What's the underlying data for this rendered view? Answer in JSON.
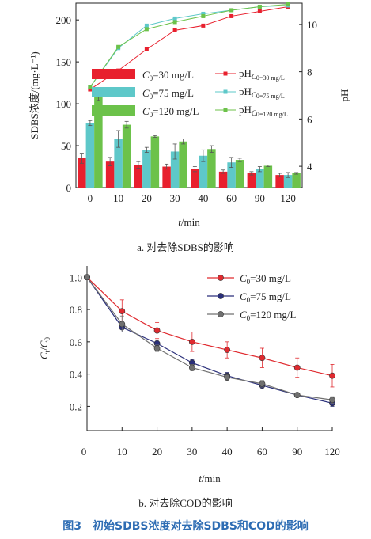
{
  "chart_data": [
    {
      "type": "bar",
      "title": "",
      "categories": [
        "0",
        "10",
        "20",
        "30",
        "40",
        "60",
        "90",
        "120"
      ],
      "xlabel": "t/min",
      "ylabel": "SDBS浓度/(mg·L⁻¹)",
      "ylim": [
        0,
        220
      ],
      "yticks": [
        0,
        50,
        100,
        150,
        200
      ],
      "y2label": "pH",
      "y2lim": [
        3.1,
        10.9
      ],
      "y2ticks": [
        4,
        6,
        8,
        10
      ],
      "legend": "top-center",
      "bar_series": [
        {
          "name": "C0=30 mg/L",
          "name_var": "C",
          "name_sub": "0",
          "name_rest": "=30 mg/L",
          "color": "#e8202e",
          "values": [
            35,
            31,
            27,
            25,
            22,
            19,
            17,
            15
          ],
          "errors": [
            6,
            5,
            4,
            3,
            3,
            2,
            2,
            2
          ]
        },
        {
          "name": "C0=75 mg/L",
          "name_var": "C",
          "name_sub": "0",
          "name_rest": "=75 mg/L",
          "color": "#5ec8c9",
          "values": [
            77,
            58,
            45,
            43,
            38,
            30,
            22,
            15
          ],
          "errors": [
            3,
            10,
            3,
            9,
            7,
            6,
            3,
            3
          ]
        },
        {
          "name": "C0=120 mg/L",
          "name_var": "C",
          "name_sub": "0",
          "name_rest": "=120 mg/L",
          "color": "#6cc24a",
          "values": [
            110,
            75,
            61,
            55,
            46,
            33,
            26,
            17
          ],
          "errors": [
            6,
            4,
            1,
            3,
            4,
            2,
            1,
            1
          ]
        }
      ],
      "line_series": [
        {
          "name": "pHC0=30 mg/L",
          "name_main": "pH",
          "name_sub": "C",
          "name_sub2": "0",
          "name_rest": "=30 mg/L",
          "color": "#e8202e",
          "values": [
            7.25,
            8.05,
            8.95,
            9.75,
            9.95,
            10.35,
            10.55,
            10.75
          ]
        },
        {
          "name": "pHC0=75 mg/L",
          "name_main": "pH",
          "name_sub": "C",
          "name_sub2": "0",
          "name_rest": "=75 mg/L",
          "color": "#5ec8c9",
          "values": [
            7.35,
            9.0,
            9.95,
            10.25,
            10.45,
            10.6,
            10.75,
            10.8
          ]
        },
        {
          "name": "pHC0=120 mg/L",
          "name_main": "pH",
          "name_sub": "C",
          "name_sub2": "0",
          "name_rest": "=120 mg/L",
          "color": "#6cc24a",
          "values": [
            7.35,
            9.05,
            9.8,
            10.1,
            10.35,
            10.6,
            10.75,
            10.85
          ]
        }
      ],
      "caption": "a. 对去除SDBS的影响"
    },
    {
      "type": "line",
      "title": "",
      "x": [
        0,
        10,
        20,
        30,
        40,
        60,
        90,
        120
      ],
      "xticks": [
        "0",
        "10",
        "20",
        "30",
        "40",
        "60",
        "90",
        "120"
      ],
      "xlabel": "t/min",
      "ylabel": "Ct/C0",
      "ylim": [
        0.05,
        1.07
      ],
      "yticks": [
        "0.2",
        "0.4",
        "0.6",
        "0.8",
        "1.0"
      ],
      "legend": "top-right",
      "series": [
        {
          "name": "C0=30 mg/L",
          "name_var": "C",
          "name_sub": "0",
          "name_rest": "=30 mg/L",
          "color": "#e02a2f",
          "values": [
            1.0,
            0.79,
            0.67,
            0.6,
            0.55,
            0.5,
            0.44,
            0.39
          ],
          "errors": [
            0,
            0.07,
            0.05,
            0.06,
            0.05,
            0.06,
            0.06,
            0.07
          ]
        },
        {
          "name": "C0=75 mg/L",
          "name_var": "C",
          "name_sub": "0",
          "name_rest": "=75 mg/L",
          "color": "#2a2f7a",
          "values": [
            1.0,
            0.69,
            0.59,
            0.47,
            0.39,
            0.33,
            0.27,
            0.22
          ],
          "errors": [
            0,
            0.03,
            0.02,
            0.02,
            0.02,
            0.02,
            0.01,
            0.02
          ]
        },
        {
          "name": "C0=120 mg/L",
          "name_var": "C",
          "name_sub": "0",
          "name_rest": "=120 mg/L",
          "color": "#707070",
          "values": [
            1.0,
            0.71,
            0.56,
            0.44,
            0.38,
            0.34,
            0.27,
            0.24
          ],
          "errors": [
            0,
            0.05,
            0.02,
            0.02,
            0.02,
            0.02,
            0.01,
            0.02
          ]
        }
      ],
      "caption": "b. 对去除COD的影响"
    }
  ],
  "figure_caption": {
    "number": "图3",
    "text": "初始SDBS浓度对去除SDBS和COD的影响"
  }
}
